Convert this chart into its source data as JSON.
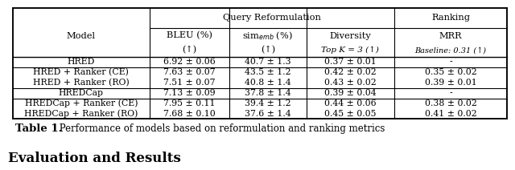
{
  "col_headers": {
    "span1": "Query Reformulation",
    "span2": "Ranking",
    "h2": [
      "Model",
      "BLEU (%)",
      "sim$_{emb}$ (%)",
      "Diversity",
      "MRR"
    ],
    "h3_arrow": [
      "(↑)",
      "(↑)"
    ],
    "h3_diversity": "Top K = 3 (↑)",
    "h3_mrr": "Baseline: 0.31 (↑)"
  },
  "rows": [
    [
      "HRED",
      "6.92 ± 0.06",
      "40.7 ± 1.3",
      "0.37 ± 0.01",
      "-"
    ],
    [
      "HRED + Ranker (CE)",
      "7.63 ± 0.07",
      "43.5 ± 1.2",
      "0.42 ± 0.02",
      "0.35 ± 0.02"
    ],
    [
      "HRED + Ranker (RO)",
      "7.51 ± 0.07",
      "40.8 ± 1.4",
      "0.43 ± 0.02",
      "0.39 ± 0.01"
    ],
    [
      "HREDCap",
      "7.13 ± 0.09",
      "37.8 ± 1.4",
      "0.39 ± 0.04",
      "-"
    ],
    [
      "HREDCap + Ranker (CE)",
      "7.95 ± 0.11",
      "39.4 ± 1.2",
      "0.44 ± 0.06",
      "0.38 ± 0.02"
    ],
    [
      "HREDCap + Ranker (RO)",
      "7.68 ± 0.10",
      "37.6 ± 1.4",
      "0.45 ± 0.05",
      "0.41 ± 0.02"
    ]
  ],
  "caption_bold": "Table 1.",
  "caption_normal": " Performance of models based on reformulation and ranking metrics",
  "footer": "Evaluation and Results",
  "background_color": "#ffffff",
  "figsize": [
    6.4,
    2.12
  ],
  "dpi": 100
}
